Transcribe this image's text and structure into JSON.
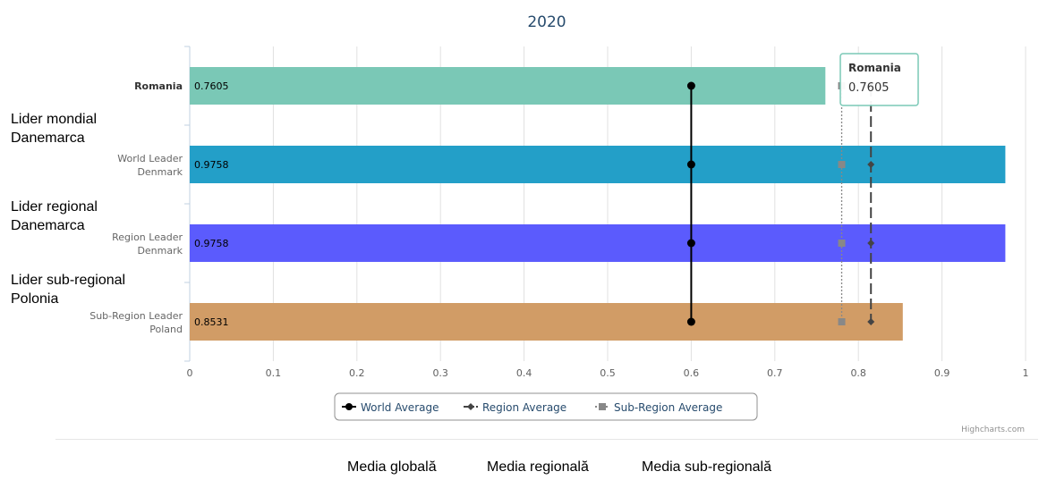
{
  "chart_data": {
    "type": "bar",
    "title": "2020",
    "categories": [
      {
        "line1": "Romania",
        "line2": "",
        "bold": true
      },
      {
        "line1": "World Leader",
        "line2": "Denmark",
        "bold": false
      },
      {
        "line1": "Region Leader",
        "line2": "Denmark",
        "bold": false
      },
      {
        "line1": "Sub-Region Leader",
        "line2": "Poland",
        "bold": false
      }
    ],
    "values": [
      0.7605,
      0.9758,
      0.9758,
      0.8531
    ],
    "value_labels": [
      "0.7605",
      "0.9758",
      "0.9758",
      "0.8531"
    ],
    "bar_colors": [
      "#7ac8b6",
      "#239fc8",
      "#5b5bfd",
      "#d19c66"
    ],
    "xlim": [
      0,
      1
    ],
    "x_ticks": [
      "0",
      "0.1",
      "0.2",
      "0.3",
      "0.4",
      "0.5",
      "0.6",
      "0.7",
      "0.8",
      "0.9",
      "1"
    ],
    "reference_lines": [
      {
        "name": "World Average",
        "value": 0.6,
        "color": "#000000",
        "style": "solid",
        "marker": "circle"
      },
      {
        "name": "Region Average",
        "value": 0.815,
        "color": "#444444",
        "style": "dash",
        "marker": "diamond"
      },
      {
        "name": "Sub-Region Average",
        "value": 0.78,
        "color": "#888888",
        "style": "dot",
        "marker": "square"
      }
    ],
    "tooltip": {
      "title": "Romania",
      "value": "0.7605"
    },
    "grid": true,
    "legend_position": "bottom-center"
  },
  "annotations": {
    "left": [
      "Lider mondial\nDanemarca",
      "Lider regional\nDanemarca",
      "Lider sub-regional\nPolonia"
    ],
    "bottom": [
      "Media globală",
      "Media regională",
      "Media sub-regională"
    ]
  },
  "credits": "Highcharts.com"
}
